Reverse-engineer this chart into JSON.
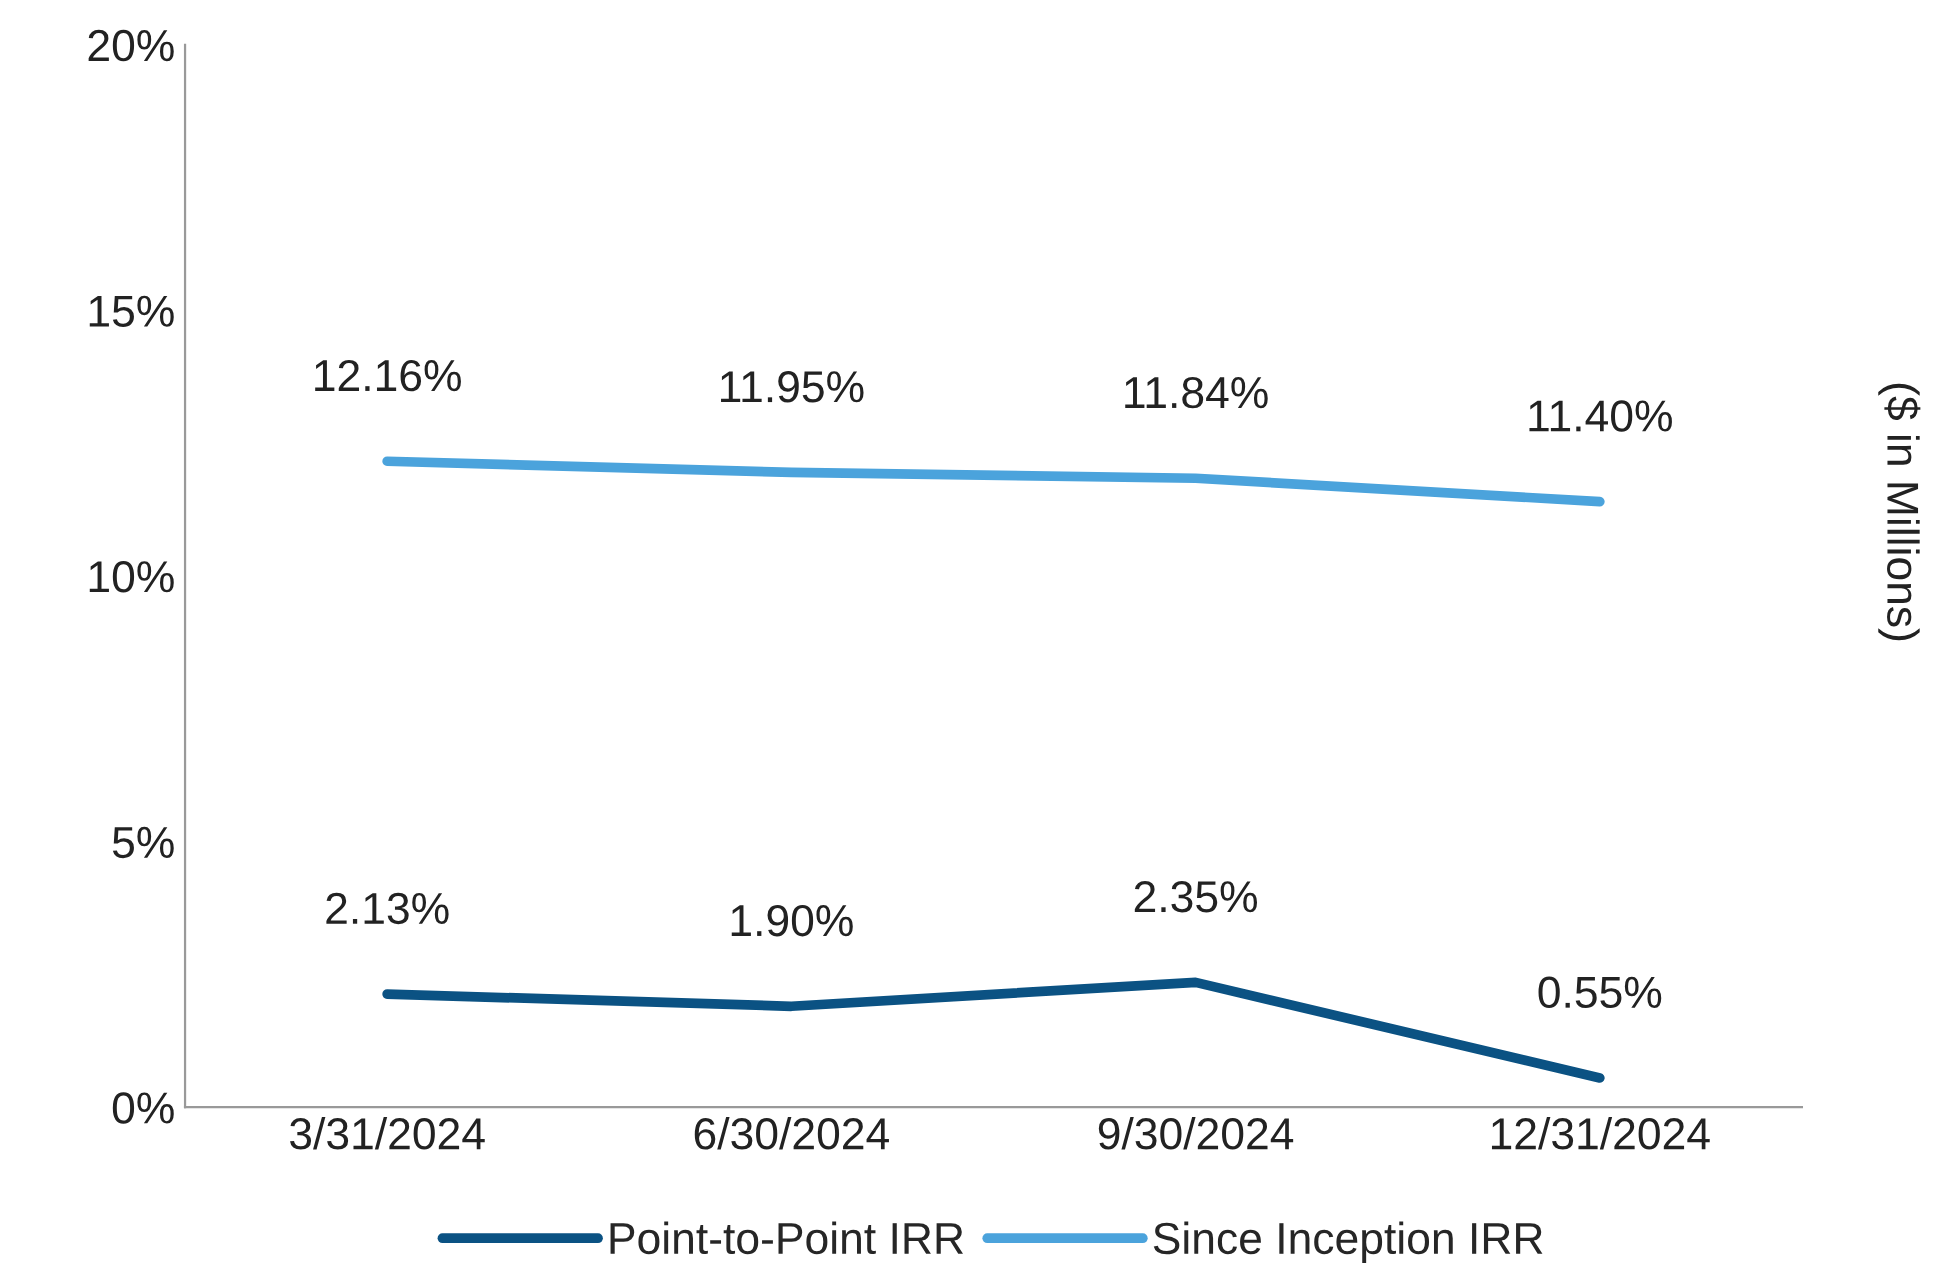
{
  "chart_data": {
    "type": "line",
    "categories": [
      "3/31/2024",
      "6/30/2024",
      "9/30/2024",
      "12/31/2024"
    ],
    "series": [
      {
        "name": "Point-to-Point IRR",
        "color": "#0b5283",
        "values": [
          2.13,
          1.9,
          2.35,
          0.55
        ],
        "value_labels": [
          "2.13%",
          "1.90%",
          "2.35%",
          "0.55%"
        ]
      },
      {
        "name": "Since Inception IRR",
        "color": "#4ba3dc",
        "values": [
          12.16,
          11.95,
          11.84,
          11.4
        ],
        "value_labels": [
          "12.16%",
          "11.95%",
          "11.84%",
          "11.40%"
        ]
      }
    ],
    "ylim": [
      0,
      20
    ],
    "yticks": [
      {
        "value": 0,
        "label": "0%"
      },
      {
        "value": 5,
        "label": "5%"
      },
      {
        "value": 10,
        "label": "10%"
      },
      {
        "value": 15,
        "label": "15%"
      },
      {
        "value": 20,
        "label": "20%"
      }
    ],
    "y2label": "($ in Millions)",
    "grid": false,
    "legend": "bottom",
    "marker": "none",
    "line_style": "solid"
  }
}
